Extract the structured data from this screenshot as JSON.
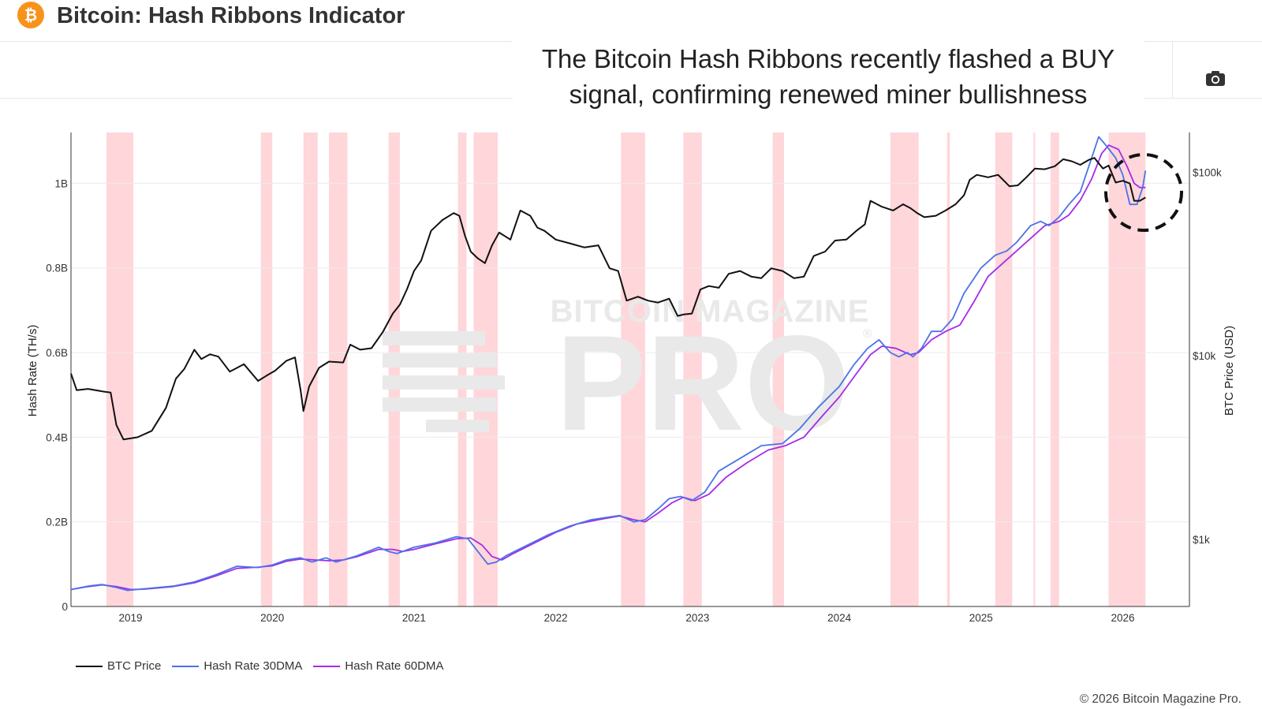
{
  "header": {
    "logo_symbol": "₿",
    "title": "Bitcoin: Hash Ribbons Indicator"
  },
  "annotation": {
    "line1": "The Bitcoin Hash Ribbons recently flashed a BUY",
    "line2": "signal, confirming renewed miner bullishness"
  },
  "toolbar": {
    "screenshot_icon": "camera-icon"
  },
  "watermark": {
    "line1": "BITCOIN MAGAZINE",
    "line2": "PRO",
    "mark": "®"
  },
  "footer": {
    "copyright": "© 2026 Bitcoin Magazine Pro."
  },
  "colors": {
    "btc_price": "#111111",
    "hash_30dma": "#4a73e8",
    "hash_60dma": "#a52be8",
    "capitulation_band": "#ffcfd4",
    "logo": "#f7931a"
  },
  "chart_data": {
    "type": "line",
    "title": "Bitcoin: Hash Ribbons Indicator",
    "xlabel": "",
    "ylabel": "Hash Rate (TH/s)",
    "y2label": "BTC Price (USD)",
    "xlim": [
      2018.58,
      2026.47
    ],
    "ylim": [
      0,
      1120000000
    ],
    "y2_log": true,
    "y2lim": [
      430,
      165000
    ],
    "x_ticks": [
      2019,
      2020,
      2021,
      2022,
      2023,
      2024,
      2025,
      2026
    ],
    "x_tick_labels": [
      "2019",
      "2020",
      "2021",
      "2022",
      "2023",
      "2024",
      "2025",
      "2026"
    ],
    "y_ticks": [
      0,
      200000000,
      400000000,
      600000000,
      800000000,
      1000000000
    ],
    "y_tick_labels": [
      "0",
      "0.2B",
      "0.4B",
      "0.6B",
      "0.8B",
      "1B"
    ],
    "y2_ticks": [
      1000,
      10000,
      100000
    ],
    "y2_tick_labels": [
      "$1k",
      "$10k",
      "$100k"
    ],
    "grid": true,
    "legend_position": "bottom-left",
    "capitulation_bands": [
      [
        2018.83,
        2019.02
      ],
      [
        2019.92,
        2020.0
      ],
      [
        2020.22,
        2020.32
      ],
      [
        2020.4,
        2020.53
      ],
      [
        2020.82,
        2020.9
      ],
      [
        2021.31,
        2021.37
      ],
      [
        2021.42,
        2021.59
      ],
      [
        2022.46,
        2022.63
      ],
      [
        2022.9,
        2023.03
      ],
      [
        2023.53,
        2023.61
      ],
      [
        2024.36,
        2024.56
      ],
      [
        2024.76,
        2024.78
      ],
      [
        2025.1,
        2025.22
      ],
      [
        2025.37,
        2025.38
      ],
      [
        2025.49,
        2025.55
      ],
      [
        2025.9,
        2026.16
      ]
    ],
    "series": [
      {
        "name": "BTC Price",
        "axis": "right",
        "x": [
          2018.58,
          2018.62,
          2018.7,
          2018.8,
          2018.86,
          2018.9,
          2018.95,
          2019.05,
          2019.15,
          2019.25,
          2019.32,
          2019.38,
          2019.45,
          2019.5,
          2019.56,
          2019.62,
          2019.7,
          2019.8,
          2019.9,
          2019.96,
          2020.02,
          2020.1,
          2020.16,
          2020.2,
          2020.22,
          2020.26,
          2020.33,
          2020.4,
          2020.5,
          2020.55,
          2020.62,
          2020.7,
          2020.78,
          2020.85,
          2020.9,
          2020.95,
          2021.0,
          2021.05,
          2021.12,
          2021.2,
          2021.28,
          2021.32,
          2021.36,
          2021.4,
          2021.45,
          2021.5,
          2021.55,
          2021.6,
          2021.68,
          2021.75,
          2021.82,
          2021.87,
          2021.92,
          2022.0,
          2022.1,
          2022.2,
          2022.3,
          2022.38,
          2022.44,
          2022.5,
          2022.58,
          2022.65,
          2022.72,
          2022.8,
          2022.86,
          2022.9,
          2022.96,
          2023.02,
          2023.08,
          2023.15,
          2023.22,
          2023.3,
          2023.38,
          2023.45,
          2023.52,
          2023.6,
          2023.68,
          2023.75,
          2023.82,
          2023.9,
          2023.97,
          2024.05,
          2024.12,
          2024.18,
          2024.22,
          2024.3,
          2024.38,
          2024.45,
          2024.5,
          2024.55,
          2024.6,
          2024.68,
          2024.75,
          2024.82,
          2024.88,
          2024.92,
          2024.97,
          2025.05,
          2025.12,
          2025.2,
          2025.26,
          2025.32,
          2025.38,
          2025.45,
          2025.52,
          2025.58,
          2025.64,
          2025.7,
          2025.76,
          2025.8,
          2025.83,
          2025.86,
          2025.9,
          2025.95,
          2026.0,
          2026.05,
          2026.08,
          2026.12,
          2026.16
        ],
        "values": [
          8000,
          6500,
          6600,
          6400,
          6300,
          4200,
          3500,
          3600,
          3900,
          5200,
          7500,
          8500,
          10800,
          9600,
          10200,
          9900,
          8200,
          9000,
          7300,
          7800,
          8300,
          9400,
          9800,
          6500,
          5000,
          6800,
          8600,
          9300,
          9200,
          11500,
          10800,
          11000,
          13500,
          17000,
          19000,
          23000,
          29000,
          33000,
          48000,
          55000,
          60000,
          58000,
          45000,
          37000,
          34000,
          32000,
          40000,
          47000,
          43000,
          62000,
          58000,
          50000,
          48000,
          43000,
          41000,
          39000,
          40000,
          30000,
          29000,
          20000,
          21000,
          20000,
          19500,
          20500,
          16500,
          16800,
          17000,
          23000,
          24000,
          23500,
          28000,
          29000,
          27000,
          26500,
          30000,
          29000,
          26500,
          27000,
          35000,
          37000,
          42500,
          43000,
          48000,
          52000,
          70000,
          65000,
          62000,
          67000,
          64000,
          60000,
          57000,
          58000,
          62000,
          67000,
          75000,
          91000,
          97000,
          94000,
          97000,
          84000,
          85000,
          94000,
          105000,
          104000,
          108000,
          118000,
          115000,
          110000,
          117000,
          120000,
          112000,
          105000,
          109000,
          88000,
          90000,
          87000,
          70000,
          70000,
          73000
        ]
      },
      {
        "name": "Hash Rate 30DMA",
        "axis": "left",
        "x": [
          2018.58,
          2018.7,
          2018.8,
          2018.9,
          2018.98,
          2019.1,
          2019.3,
          2019.45,
          2019.6,
          2019.75,
          2019.9,
          2020.0,
          2020.1,
          2020.2,
          2020.28,
          2020.33,
          2020.38,
          2020.45,
          2020.6,
          2020.75,
          2020.82,
          2020.88,
          2021.0,
          2021.15,
          2021.3,
          2021.38,
          2021.45,
          2021.52,
          2021.58,
          2021.65,
          2021.8,
          2021.95,
          2022.1,
          2022.25,
          2022.45,
          2022.55,
          2022.63,
          2022.72,
          2022.8,
          2022.88,
          2022.96,
          2023.05,
          2023.15,
          2023.3,
          2023.45,
          2023.6,
          2023.72,
          2023.85,
          2024.0,
          2024.1,
          2024.2,
          2024.28,
          2024.36,
          2024.42,
          2024.48,
          2024.52,
          2024.58,
          2024.65,
          2024.72,
          2024.8,
          2024.88,
          2025.0,
          2025.1,
          2025.18,
          2025.25,
          2025.35,
          2025.42,
          2025.48,
          2025.55,
          2025.62,
          2025.7,
          2025.77,
          2025.83,
          2025.88,
          2025.95,
          2026.0,
          2026.05,
          2026.1,
          2026.14,
          2026.16
        ],
        "values": [
          40000000,
          48000000,
          52000000,
          45000000,
          38000000,
          42000000,
          48000000,
          58000000,
          75000000,
          95000000,
          92000000,
          98000000,
          110000000,
          115000000,
          105000000,
          110000000,
          115000000,
          105000000,
          120000000,
          140000000,
          130000000,
          125000000,
          140000000,
          150000000,
          165000000,
          160000000,
          130000000,
          100000000,
          105000000,
          120000000,
          145000000,
          170000000,
          190000000,
          205000000,
          215000000,
          200000000,
          205000000,
          230000000,
          255000000,
          260000000,
          250000000,
          270000000,
          320000000,
          350000000,
          380000000,
          385000000,
          420000000,
          470000000,
          520000000,
          570000000,
          610000000,
          630000000,
          600000000,
          590000000,
          600000000,
          590000000,
          610000000,
          650000000,
          650000000,
          680000000,
          740000000,
          800000000,
          830000000,
          840000000,
          860000000,
          900000000,
          910000000,
          900000000,
          920000000,
          950000000,
          980000000,
          1050000000,
          1110000000,
          1090000000,
          1060000000,
          1020000000,
          950000000,
          950000000,
          990000000,
          1030000000
        ]
      },
      {
        "name": "Hash Rate 60DMA",
        "axis": "left",
        "x": [
          2018.58,
          2018.7,
          2018.8,
          2018.9,
          2019.0,
          2019.1,
          2019.3,
          2019.45,
          2019.6,
          2019.75,
          2019.9,
          2020.0,
          2020.1,
          2020.2,
          2020.3,
          2020.4,
          2020.5,
          2020.6,
          2020.75,
          2020.85,
          2020.92,
          2021.0,
          2021.15,
          2021.3,
          2021.4,
          2021.48,
          2021.55,
          2021.62,
          2021.7,
          2021.85,
          2022.0,
          2022.15,
          2022.3,
          2022.45,
          2022.55,
          2022.63,
          2022.72,
          2022.82,
          2022.9,
          2022.98,
          2023.08,
          2023.2,
          2023.35,
          2023.5,
          2023.62,
          2023.75,
          2023.88,
          2024.0,
          2024.12,
          2024.22,
          2024.3,
          2024.4,
          2024.5,
          2024.56,
          2024.65,
          2024.75,
          2024.85,
          2024.95,
          2025.05,
          2025.15,
          2025.25,
          2025.35,
          2025.45,
          2025.55,
          2025.62,
          2025.7,
          2025.78,
          2025.85,
          2025.9,
          2025.97,
          2026.03,
          2026.08,
          2026.12,
          2026.16
        ],
        "values": [
          40000000,
          47000000,
          51000000,
          47000000,
          40000000,
          41000000,
          47000000,
          56000000,
          72000000,
          90000000,
          93000000,
          96000000,
          107000000,
          112000000,
          110000000,
          108000000,
          110000000,
          118000000,
          135000000,
          135000000,
          130000000,
          135000000,
          148000000,
          160000000,
          162000000,
          145000000,
          118000000,
          110000000,
          125000000,
          150000000,
          175000000,
          195000000,
          205000000,
          214000000,
          205000000,
          200000000,
          220000000,
          245000000,
          258000000,
          250000000,
          265000000,
          305000000,
          340000000,
          370000000,
          380000000,
          400000000,
          450000000,
          495000000,
          550000000,
          595000000,
          615000000,
          610000000,
          595000000,
          600000000,
          630000000,
          650000000,
          665000000,
          720000000,
          780000000,
          810000000,
          840000000,
          870000000,
          900000000,
          910000000,
          925000000,
          960000000,
          1010000000,
          1070000000,
          1090000000,
          1080000000,
          1040000000,
          1000000000,
          990000000,
          990000000
        ]
      }
    ]
  }
}
